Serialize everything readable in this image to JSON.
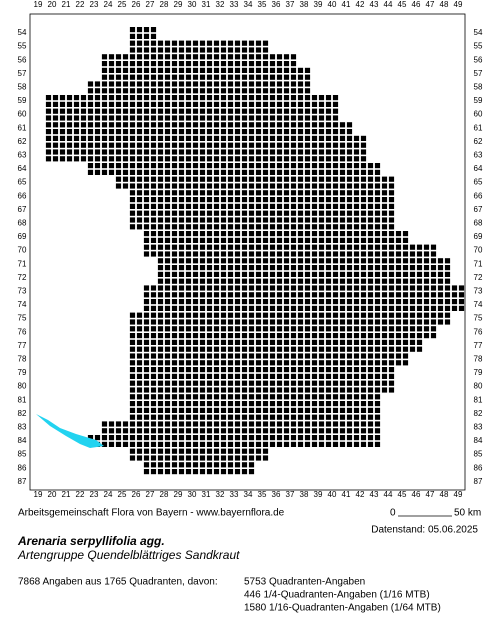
{
  "map": {
    "columns": [
      19,
      20,
      21,
      22,
      23,
      24,
      25,
      26,
      27,
      28,
      29,
      30,
      31,
      32,
      33,
      34,
      35,
      36,
      37,
      38,
      39,
      40,
      41,
      42,
      43,
      44,
      45,
      46,
      47,
      48,
      49
    ],
    "rows": [
      54,
      55,
      56,
      57,
      58,
      59,
      60,
      61,
      62,
      63,
      64,
      65,
      66,
      67,
      68,
      69,
      70,
      71,
      72,
      73,
      74,
      75,
      76,
      77,
      78,
      79,
      80,
      81,
      82,
      83,
      84,
      85,
      86,
      87
    ],
    "occupied": [
      {
        "row": 54,
        "from": 26,
        "to": 27
      },
      {
        "row": 55,
        "from": 26,
        "to": 35
      },
      {
        "row": 56,
        "from": 24,
        "to": 37
      },
      {
        "row": 57,
        "from": 24,
        "to": 38
      },
      {
        "row": 58,
        "from": 23,
        "to": 38
      },
      {
        "row": 59,
        "from": 20,
        "to": 40
      },
      {
        "row": 60,
        "from": 20,
        "to": 40
      },
      {
        "row": 61,
        "from": 20,
        "to": 41
      },
      {
        "row": 62,
        "from": 20,
        "to": 42
      },
      {
        "row": 63,
        "from": 20,
        "to": 42
      },
      {
        "row": 64,
        "from": 23,
        "to": 43
      },
      {
        "row": 65,
        "from": 25,
        "to": 44
      },
      {
        "row": 66,
        "from": 26,
        "to": 44
      },
      {
        "row": 67,
        "from": 26,
        "to": 44
      },
      {
        "row": 68,
        "from": 26,
        "to": 44
      },
      {
        "row": 69,
        "from": 27,
        "to": 45
      },
      {
        "row": 70,
        "from": 27,
        "to": 47
      },
      {
        "row": 71,
        "from": 28,
        "to": 48
      },
      {
        "row": 72,
        "from": 28,
        "to": 48
      },
      {
        "row": 73,
        "from": 27,
        "to": 49
      },
      {
        "row": 74,
        "from": 27,
        "to": 49
      },
      {
        "row": 75,
        "from": 26,
        "to": 48
      },
      {
        "row": 76,
        "from": 26,
        "to": 47
      },
      {
        "row": 77,
        "from": 26,
        "to": 46
      },
      {
        "row": 78,
        "from": 26,
        "to": 45
      },
      {
        "row": 79,
        "from": 26,
        "to": 44
      },
      {
        "row": 80,
        "from": 26,
        "to": 44
      },
      {
        "row": 81,
        "from": 26,
        "to": 43
      },
      {
        "row": 82,
        "from": 26,
        "to": 43
      },
      {
        "row": 83,
        "from": 24,
        "to": 43
      },
      {
        "row": 84,
        "from": 23,
        "to": 43
      },
      {
        "row": 85,
        "from": 26,
        "to": 35
      },
      {
        "row": 86,
        "from": 27,
        "to": 34
      }
    ]
  },
  "credit": "Arbeitsgemeinschaft Flora von Bayern - www.bayernflora.de",
  "scale": {
    "start": "0",
    "end": "50 km"
  },
  "date": "Datenstand: 05.06.2025",
  "species": {
    "name": "Arenaria serpyllifolia agg.",
    "common": "Artengruppe Quendelblättriges Sandkraut"
  },
  "stats": {
    "summary": "7868 Angaben aus 1765 Quadranten, davon:",
    "lines": [
      "5753 Quadranten-Angaben",
      "446 1/4-Quadranten-Angaben (1/16 MTB)",
      "1580 1/16-Quadranten-Angaben (1/64 MTB)"
    ]
  }
}
